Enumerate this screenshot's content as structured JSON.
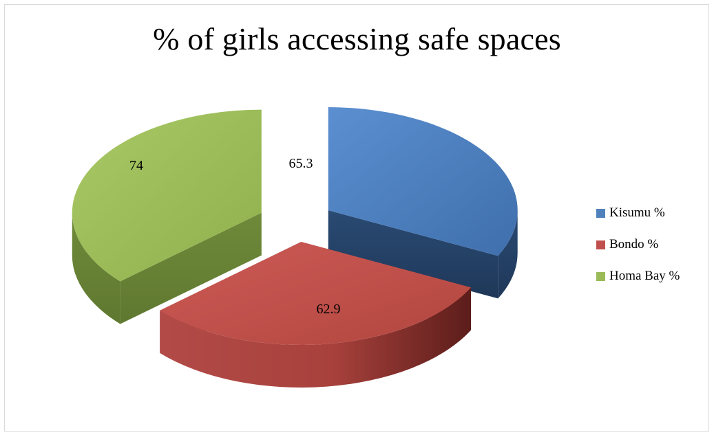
{
  "chart_data": {
    "type": "pie",
    "title": "% of girls accessing safe spaces",
    "categories": [
      "Kisumu %",
      "Bondo %",
      "Homa Bay %"
    ],
    "values": [
      65.3,
      62.9,
      74
    ],
    "colors": {
      "Kisumu %": "#4f81bd",
      "Bondo %": "#c0504d",
      "Homa Bay %": "#9bbb59"
    },
    "legend_position": "right",
    "style": "3d-exploded"
  }
}
